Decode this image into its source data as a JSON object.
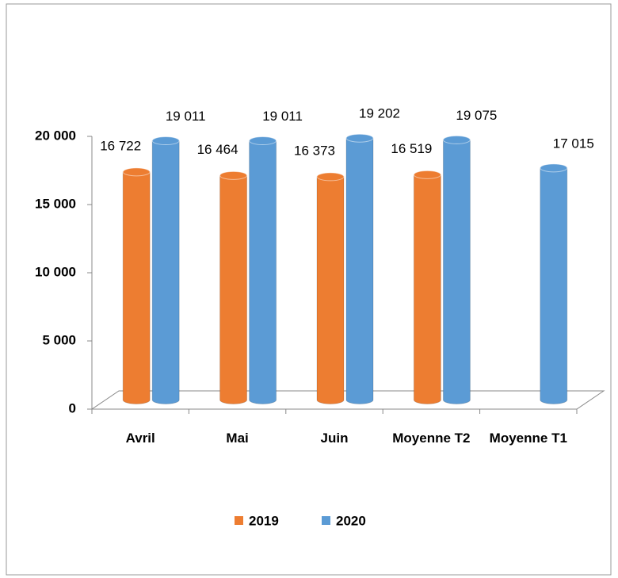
{
  "chart_data": {
    "type": "bar",
    "categories": [
      "Avril",
      "Mai",
      "Juin",
      "Moyenne T2",
      "Moyenne T1"
    ],
    "series": [
      {
        "name": "2019",
        "color": "#ed7d31",
        "values": [
          16722,
          16464,
          16373,
          16519,
          null
        ],
        "value_labels": [
          "16 722",
          "16 464",
          "16 373",
          "16 519",
          null
        ]
      },
      {
        "name": "2020",
        "color": "#5b9bd5",
        "values": [
          19011,
          19011,
          19202,
          19075,
          17015
        ],
        "value_labels": [
          "19 011",
          "19 011",
          "19 202",
          "19 075",
          "17 015"
        ]
      }
    ],
    "ylim": [
      0,
      20000
    ],
    "yticks": [
      {
        "value": 0,
        "label": "0"
      },
      {
        "value": 5000,
        "label": "5 000"
      },
      {
        "value": 10000,
        "label": "10 000"
      },
      {
        "value": 15000,
        "label": "15 000"
      },
      {
        "value": 20000,
        "label": "20 000"
      }
    ],
    "legend": "bottom"
  }
}
